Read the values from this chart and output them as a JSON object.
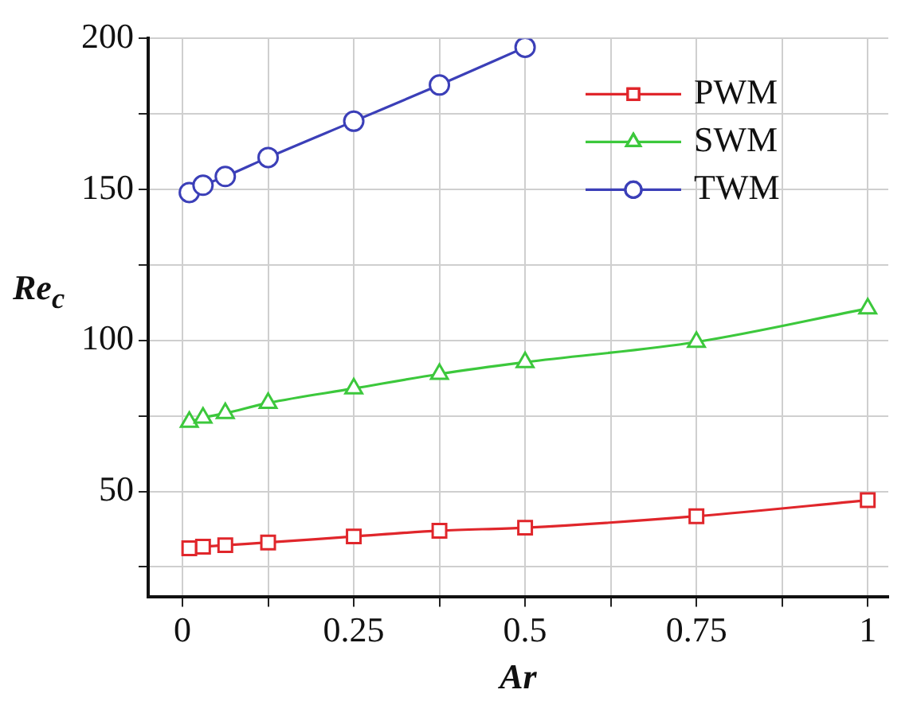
{
  "chart_data": {
    "type": "line",
    "xlabel": "Ar",
    "ylabel": "Re$_{c}$",
    "x": [
      0.01,
      0.03,
      0.0625,
      0.125,
      0.25,
      0.375,
      0.5,
      0.75,
      1
    ],
    "series": [
      {
        "name": "PWM",
        "color": "#e0262b",
        "marker": "square",
        "values": [
          31.2,
          31.7,
          32.2,
          33.1,
          35.1,
          37,
          38,
          41.8,
          47.1
        ]
      },
      {
        "name": "SWM",
        "color": "#3cc83c",
        "marker": "triangle",
        "values": [
          73,
          74.4,
          75.9,
          79.3,
          84.1,
          88.9,
          92.8,
          99.5,
          110.6
        ]
      },
      {
        "name": "TWM",
        "color": "#3b3fb8",
        "marker": "circle",
        "values": [
          149,
          151.4,
          154.3,
          160.6,
          172.6,
          184.6,
          197.1,
          null,
          null
        ]
      }
    ],
    "xlim": [
      -0.05,
      1.03
    ],
    "xticks": [
      0,
      {
        "value": 0.125,
        "label": null
      },
      0.25,
      {
        "value": 0.375,
        "label": null
      },
      0.5,
      {
        "value": 0.625,
        "label": null
      },
      0.75,
      {
        "value": 0.875,
        "label": null
      },
      1
    ],
    "ylim": [
      15,
      200
    ],
    "yticks": [
      {
        "value": 25,
        "label": null
      },
      50,
      {
        "value": 75,
        "label": null
      },
      100,
      {
        "value": 125,
        "label": null
      },
      150,
      {
        "value": 175,
        "label": null
      },
      200
    ],
    "grid": true,
    "legend": "top right",
    "line_style": "solid"
  }
}
